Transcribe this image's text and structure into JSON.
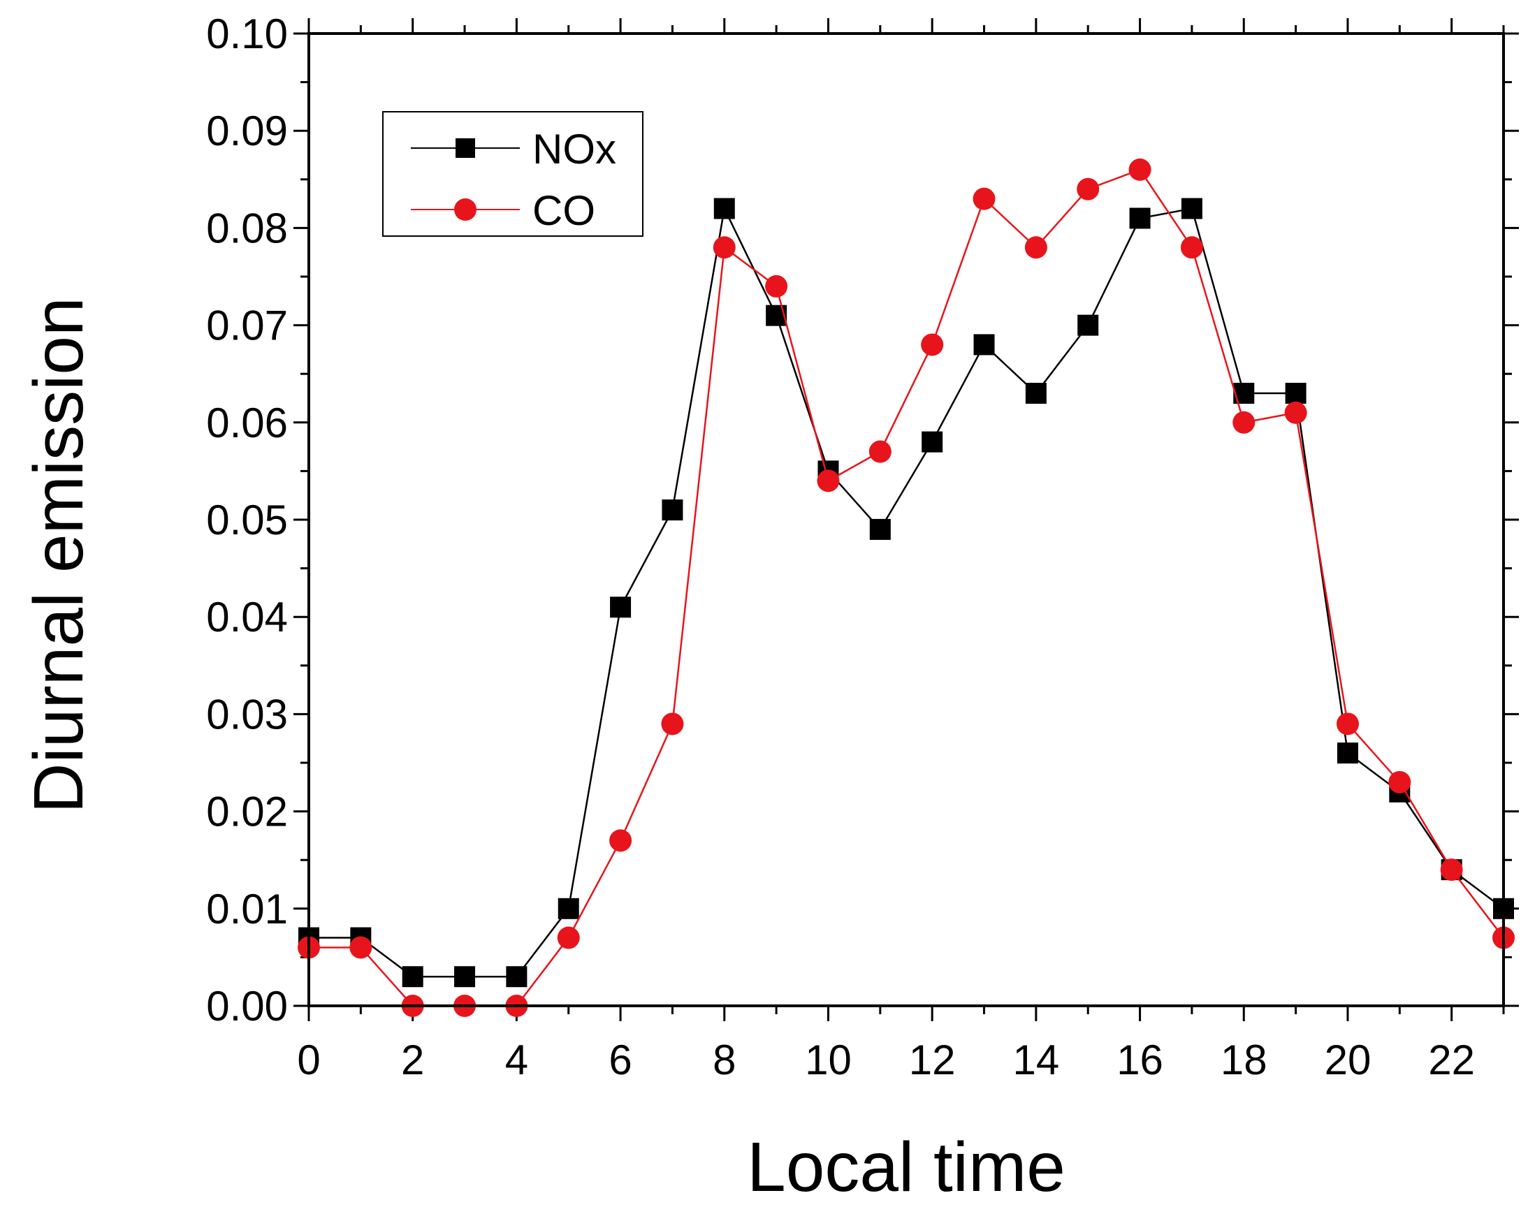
{
  "chart_data": {
    "type": "line",
    "title": "",
    "xlabel": "Local time",
    "ylabel": "Diurnal emission",
    "xlim": [
      0,
      23
    ],
    "ylim": [
      0.0,
      0.1
    ],
    "x_ticks": [
      0,
      2,
      4,
      6,
      8,
      10,
      12,
      14,
      16,
      18,
      20,
      22
    ],
    "x_tick_labels": [
      "0",
      "2",
      "4",
      "6",
      "8",
      "10",
      "12",
      "14",
      "16",
      "18",
      "20",
      "22"
    ],
    "y_ticks": [
      0.0,
      0.01,
      0.02,
      0.03,
      0.04,
      0.05,
      0.06,
      0.07,
      0.08,
      0.09,
      0.1
    ],
    "y_tick_labels": [
      "0.00",
      "0.01",
      "0.02",
      "0.03",
      "0.04",
      "0.05",
      "0.06",
      "0.07",
      "0.08",
      "0.09",
      "0.10"
    ],
    "grid": false,
    "legend_position": "top-left",
    "x": [
      0,
      1,
      2,
      3,
      4,
      5,
      6,
      7,
      8,
      9,
      10,
      11,
      12,
      13,
      14,
      15,
      16,
      17,
      18,
      19,
      20,
      21,
      22,
      23
    ],
    "series": [
      {
        "name": "NOx",
        "marker": "square",
        "color": "#000000",
        "values": [
          0.007,
          0.007,
          0.003,
          0.003,
          0.003,
          0.01,
          0.041,
          0.051,
          0.082,
          0.071,
          0.055,
          0.049,
          0.058,
          0.068,
          0.063,
          0.07,
          0.081,
          0.082,
          0.063,
          0.063,
          0.026,
          0.022,
          0.014,
          0.01
        ]
      },
      {
        "name": "CO",
        "marker": "circle",
        "color": "#e8141b",
        "values": [
          0.006,
          0.006,
          0.0,
          0.0,
          0.0,
          0.007,
          0.017,
          0.029,
          0.078,
          0.074,
          0.054,
          0.057,
          0.068,
          0.083,
          0.078,
          0.084,
          0.086,
          0.078,
          0.06,
          0.061,
          0.029,
          0.023,
          0.014,
          0.007
        ]
      }
    ]
  }
}
